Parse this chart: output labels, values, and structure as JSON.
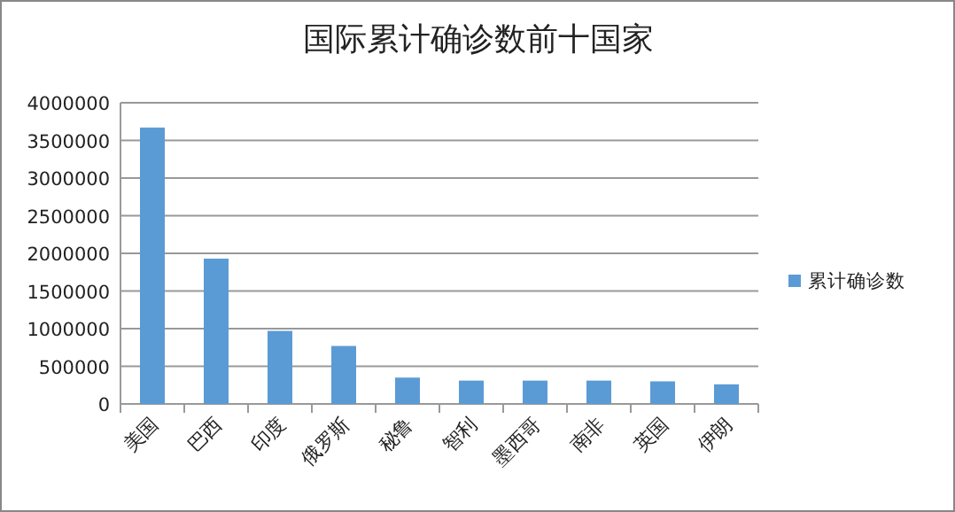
{
  "chart_data": {
    "type": "bar",
    "title": "国际累计确诊数前十国家",
    "categories": [
      "美国",
      "巴西",
      "印度",
      "俄罗斯",
      "秘鲁",
      "智利",
      "墨西哥",
      "南非",
      "英国",
      "伊朗"
    ],
    "series": [
      {
        "name": "累计确诊数",
        "color": "#5b9bd5",
        "values": [
          3670000,
          1930000,
          970000,
          770000,
          350000,
          310000,
          310000,
          310000,
          300000,
          260000
        ]
      }
    ],
    "ylim": [
      0,
      4000000
    ],
    "yticks": [
      0,
      500000,
      1000000,
      1500000,
      2000000,
      2500000,
      3000000,
      3500000,
      4000000
    ],
    "grid": "y",
    "legend": "right"
  }
}
